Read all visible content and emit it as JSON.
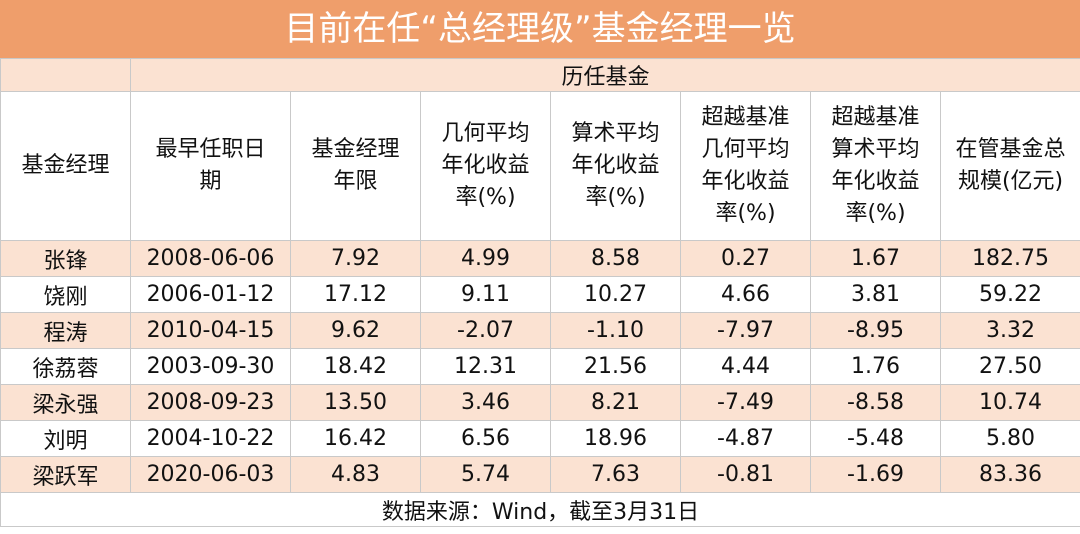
{
  "title": "目前在任“总经理级”基金经理一览",
  "group_header": "历任基金",
  "columns": [
    "基金经理",
    "最早任职日期",
    "基金经理年限",
    "几何平均年化收益率(%)",
    "算术平均年化收益率(%)",
    "超越基准几何平均年化收益率(%)",
    "超越基准算术平均年化收益率(%)",
    "在管基金总规模(亿元)"
  ],
  "rows": [
    [
      "张锋",
      "2008-06-06",
      "7.92",
      "4.99",
      "8.58",
      "0.27",
      "1.67",
      "182.75"
    ],
    [
      "饶刚",
      "2006-01-12",
      "17.12",
      "9.11",
      "10.27",
      "4.66",
      "3.81",
      "59.22"
    ],
    [
      "程涛",
      "2010-04-15",
      "9.62",
      "-2.07",
      "-1.10",
      "-7.97",
      "-8.95",
      "3.32"
    ],
    [
      "徐荔蓉",
      "2003-09-30",
      "18.42",
      "12.31",
      "21.56",
      "4.44",
      "1.76",
      "27.50"
    ],
    [
      "梁永强",
      "2008-09-23",
      "13.50",
      "3.46",
      "8.21",
      "-7.49",
      "-8.58",
      "10.74"
    ],
    [
      "刘明",
      "2004-10-22",
      "16.42",
      "6.56",
      "18.96",
      "-4.87",
      "-5.48",
      "5.80"
    ],
    [
      "梁跃军",
      "2020-06-03",
      "4.83",
      "5.74",
      "7.63",
      "-0.81",
      "-1.69",
      "83.36"
    ]
  ],
  "footer": "数据来源：Wind，截至3月31日"
}
